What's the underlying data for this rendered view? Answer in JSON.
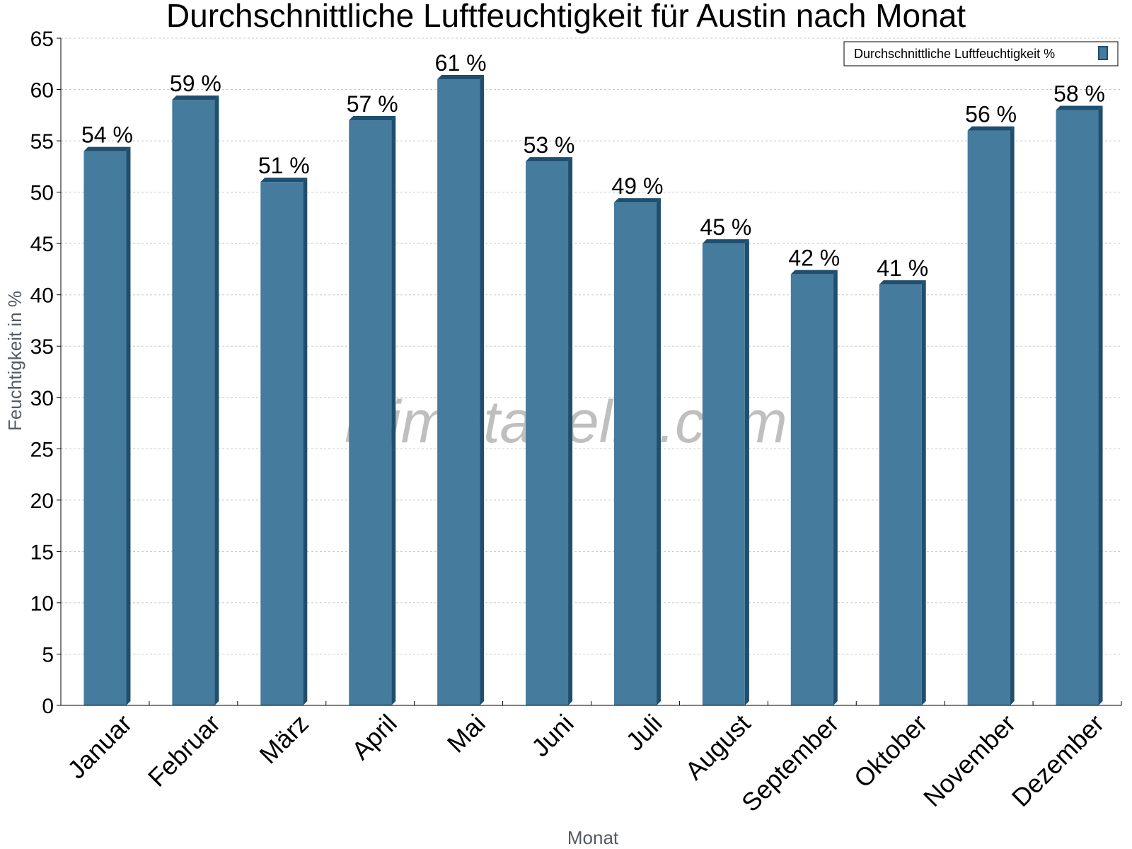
{
  "chart_data": {
    "type": "bar",
    "title": "Durchschnittliche Luftfeuchtigkeit für Austin nach Monat",
    "xlabel": "Monat",
    "ylabel": "Feuchtigkeit in %",
    "categories": [
      "Januar",
      "Februar",
      "März",
      "April",
      "Mai",
      "Juni",
      "Juli",
      "August",
      "September",
      "Oktober",
      "November",
      "Dezember"
    ],
    "series": [
      {
        "name": "Durchschnittliche Luftfeuchtigkeit %",
        "values": [
          54,
          59,
          51,
          57,
          61,
          53,
          49,
          45,
          42,
          41,
          56,
          58
        ],
        "labels": [
          "54 %",
          "59 %",
          "51 %",
          "57 %",
          "61 %",
          "53 %",
          "49 %",
          "45 %",
          "42 %",
          "41 %",
          "56 %",
          "58 %"
        ],
        "color": "#457b9d"
      }
    ],
    "ylim": [
      0,
      65
    ],
    "yticks": [
      0,
      5,
      10,
      15,
      20,
      25,
      30,
      35,
      40,
      45,
      50,
      55,
      60,
      65
    ],
    "grid": true,
    "legend_position": "top-right",
    "watermark": "klimatabelle.com",
    "colors": {
      "bar": "#457b9d",
      "bar_side": "#1f4e6e",
      "grid": "#c8c8c8",
      "axis_title": "#555b63"
    }
  }
}
